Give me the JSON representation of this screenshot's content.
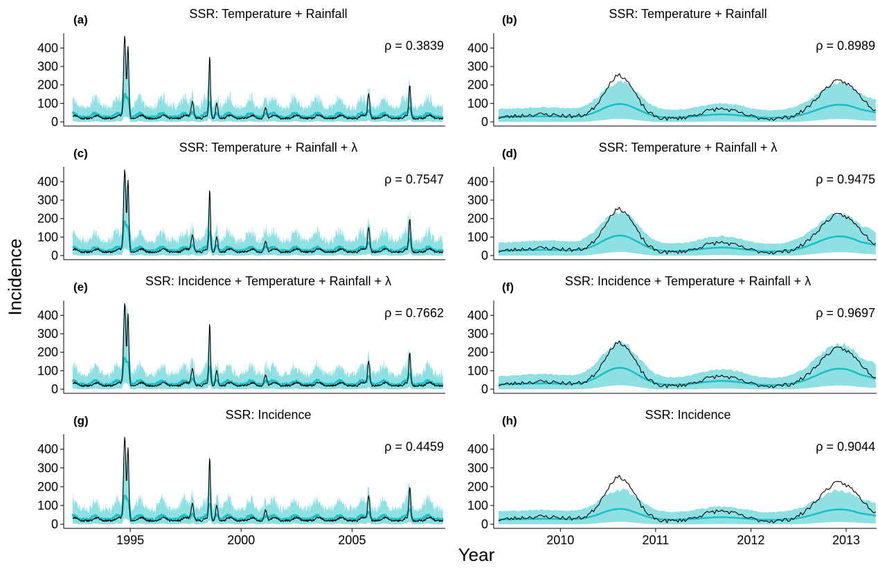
{
  "axis_titles": {
    "y": "Incidence",
    "x": "Year"
  },
  "colors": {
    "observed": "#000000",
    "predicted": "#19c0c6",
    "interval": "#8fe0e3"
  },
  "chart_data": [
    {
      "panel": "(a)",
      "title": "SSR: Temperature + Rainfall",
      "rho": "ρ = 0.3839",
      "type": "line",
      "period": "long",
      "model": "ssr_temp_rain",
      "xlim": [
        1992,
        2009.2
      ],
      "ylim": [
        0,
        480
      ],
      "yticks": [
        0,
        100,
        200,
        300,
        400
      ],
      "xticks": [
        1995,
        2000,
        2005
      ],
      "show_xticks": false,
      "series": [],
      "grid": false
    },
    {
      "panel": "(b)",
      "title": "SSR: Temperature + Rainfall",
      "rho": "ρ = 0.8989",
      "type": "line",
      "period": "short",
      "model": "ssr_temp_rain",
      "xlim": [
        2009.3,
        2013.32
      ],
      "ylim": [
        0,
        480
      ],
      "yticks": [
        0,
        100,
        200,
        300,
        400
      ],
      "xticks": [
        2010,
        2011,
        2012,
        2013
      ],
      "show_xticks": false,
      "series": [],
      "grid": false
    },
    {
      "panel": "(c)",
      "title": "SSR: Temperature + Rainfall + λ",
      "rho": "ρ = 0.7547",
      "type": "line",
      "period": "long",
      "model": "ssr_temp_rain_lambda",
      "xlim": [
        1992,
        2009.2
      ],
      "ylim": [
        0,
        480
      ],
      "yticks": [
        0,
        100,
        200,
        300,
        400
      ],
      "xticks": [
        1995,
        2000,
        2005
      ],
      "show_xticks": false,
      "series": [],
      "grid": false
    },
    {
      "panel": "(d)",
      "title": "SSR: Temperature + Rainfall + λ",
      "rho": "ρ = 0.9475",
      "type": "line",
      "period": "short",
      "model": "ssr_temp_rain_lambda",
      "xlim": [
        2009.3,
        2013.32
      ],
      "ylim": [
        0,
        480
      ],
      "yticks": [
        0,
        100,
        200,
        300,
        400
      ],
      "xticks": [
        2010,
        2011,
        2012,
        2013
      ],
      "show_xticks": false,
      "series": [],
      "grid": false
    },
    {
      "panel": "(e)",
      "title": "SSR: Incidence + Temperature + Rainfall + λ",
      "rho": "ρ = 0.7662",
      "type": "line",
      "period": "long",
      "model": "ssr_inc_temp_rain_lambda",
      "xlim": [
        1992,
        2009.2
      ],
      "ylim": [
        0,
        480
      ],
      "yticks": [
        0,
        100,
        200,
        300,
        400
      ],
      "xticks": [
        1995,
        2000,
        2005
      ],
      "show_xticks": false,
      "series": [],
      "grid": false
    },
    {
      "panel": "(f)",
      "title": "SSR: Incidence + Temperature + Rainfall + λ",
      "rho": "ρ = 0.9697",
      "type": "line",
      "period": "short",
      "model": "ssr_inc_temp_rain_lambda",
      "xlim": [
        2009.3,
        2013.32
      ],
      "ylim": [
        0,
        480
      ],
      "yticks": [
        0,
        100,
        200,
        300,
        400
      ],
      "xticks": [
        2010,
        2011,
        2012,
        2013
      ],
      "show_xticks": false,
      "series": [],
      "grid": false
    },
    {
      "panel": "(g)",
      "title": "SSR: Incidence",
      "rho": "ρ = 0.4459",
      "type": "line",
      "period": "long",
      "model": "ssr_inc",
      "xlim": [
        1992,
        2009.2
      ],
      "ylim": [
        0,
        480
      ],
      "yticks": [
        0,
        100,
        200,
        300,
        400
      ],
      "xticks": [
        1995,
        2000,
        2005
      ],
      "show_xticks": true,
      "series": [],
      "grid": false
    },
    {
      "panel": "(h)",
      "title": "SSR: Incidence",
      "rho": "ρ = 0.9044",
      "type": "line",
      "period": "short",
      "model": "ssr_inc",
      "xlim": [
        2009.3,
        2013.32
      ],
      "ylim": [
        0,
        480
      ],
      "yticks": [
        0,
        100,
        200,
        300,
        400
      ],
      "xticks": [
        2010,
        2011,
        2012,
        2013
      ],
      "show_xticks": true,
      "series": [],
      "grid": false
    }
  ]
}
